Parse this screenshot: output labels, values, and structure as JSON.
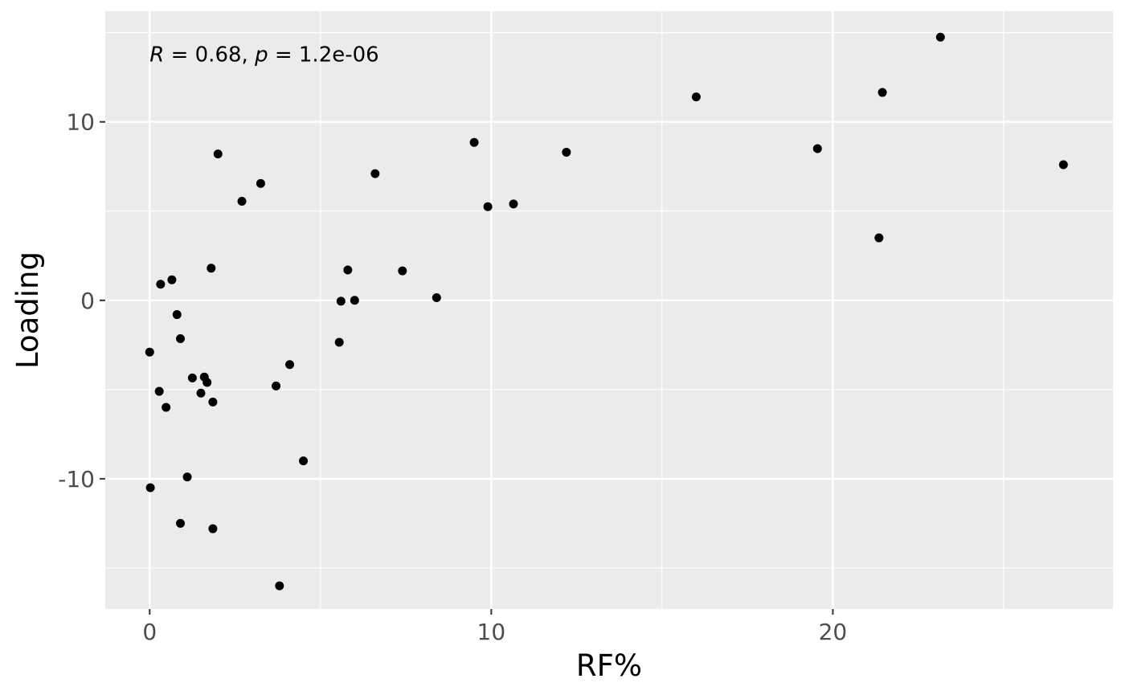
{
  "chart_data": {
    "type": "scatter",
    "xlabel": "RF%",
    "ylabel": "Loading",
    "xlim": [
      -1.3,
      28.2
    ],
    "ylim": [
      -17.3,
      16.2
    ],
    "x_ticks": [
      0,
      10,
      20
    ],
    "x_tick_labels": [
      "0",
      "10",
      "20"
    ],
    "y_ticks": [
      -10,
      0,
      10
    ],
    "y_tick_labels": [
      "-10",
      "0",
      "10"
    ],
    "grid": true,
    "legend": "none",
    "annotation": {
      "r_symbol": "R",
      "r_value": " = 0.68, ",
      "p_symbol": "p",
      "p_value": " = 1.2e-06",
      "x": 0,
      "y": 13.8
    },
    "colors": {
      "panel": "#ebebeb",
      "grid": "#ffffff",
      "point": "#000000"
    },
    "points": [
      {
        "x": 0.0,
        "y": -2.9
      },
      {
        "x": 0.02,
        "y": -10.5
      },
      {
        "x": 0.28,
        "y": -5.1
      },
      {
        "x": 0.32,
        "y": 0.9
      },
      {
        "x": 0.48,
        "y": -6.0
      },
      {
        "x": 0.65,
        "y": 1.15
      },
      {
        "x": 0.8,
        "y": -0.8
      },
      {
        "x": 0.9,
        "y": -2.15
      },
      {
        "x": 0.9,
        "y": -12.5
      },
      {
        "x": 1.1,
        "y": -9.9
      },
      {
        "x": 1.25,
        "y": -4.35
      },
      {
        "x": 1.5,
        "y": -5.2
      },
      {
        "x": 1.6,
        "y": -4.3
      },
      {
        "x": 1.68,
        "y": -4.6
      },
      {
        "x": 1.8,
        "y": 1.8
      },
      {
        "x": 1.85,
        "y": -5.7
      },
      {
        "x": 1.85,
        "y": -12.8
      },
      {
        "x": 2.0,
        "y": 8.2
      },
      {
        "x": 2.7,
        "y": 5.55
      },
      {
        "x": 3.25,
        "y": 6.55
      },
      {
        "x": 3.7,
        "y": -4.8
      },
      {
        "x": 3.8,
        "y": -16.0
      },
      {
        "x": 4.1,
        "y": -3.6
      },
      {
        "x": 4.5,
        "y": -9.0
      },
      {
        "x": 5.55,
        "y": -2.35
      },
      {
        "x": 5.6,
        "y": -0.05
      },
      {
        "x": 5.8,
        "y": 1.7
      },
      {
        "x": 6.0,
        "y": 0.0
      },
      {
        "x": 6.6,
        "y": 7.1
      },
      {
        "x": 7.4,
        "y": 1.65
      },
      {
        "x": 8.4,
        "y": 0.15
      },
      {
        "x": 9.5,
        "y": 8.85
      },
      {
        "x": 9.9,
        "y": 5.25
      },
      {
        "x": 10.65,
        "y": 5.4
      },
      {
        "x": 12.2,
        "y": 8.3
      },
      {
        "x": 16.0,
        "y": 11.4
      },
      {
        "x": 19.55,
        "y": 8.5
      },
      {
        "x": 21.35,
        "y": 3.5
      },
      {
        "x": 21.45,
        "y": 11.65
      },
      {
        "x": 23.15,
        "y": 14.75
      },
      {
        "x": 26.75,
        "y": 7.6
      }
    ]
  }
}
